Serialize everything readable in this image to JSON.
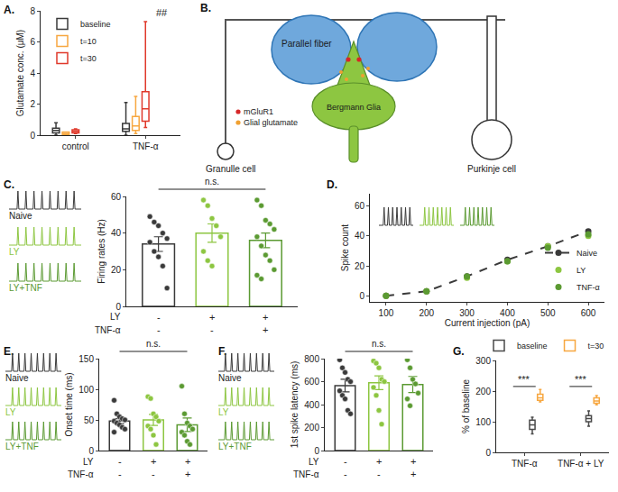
{
  "chart_data": [
    {
      "panel": "A.",
      "type": "box",
      "ylabel": "Glutamate conc. (μM)",
      "categories": [
        "control",
        "TNF-α"
      ],
      "ylim": [
        0,
        8
      ],
      "yticks": [
        0,
        2,
        4,
        6,
        8
      ],
      "legend": "top left",
      "series": [
        {
          "name": "baseline",
          "color": "#3a3a3a",
          "lower": [
            0,
            0
          ],
          "q1": [
            0.15,
            0.25
          ],
          "median": [
            0.3,
            0.4
          ],
          "q3": [
            0.45,
            0.75
          ],
          "upper": [
            0.8,
            2.1
          ]
        },
        {
          "name": "t=10",
          "color": "#f7a740",
          "lower": [
            0,
            0.1
          ],
          "q1": [
            0.05,
            0.3
          ],
          "median": [
            0.1,
            0.6
          ],
          "q3": [
            0.2,
            1.2
          ],
          "upper": [
            0.2,
            2.5
          ]
        },
        {
          "name": "t=30",
          "color": "#e0392b",
          "lower": [
            0.1,
            0.5
          ],
          "q1": [
            0.15,
            0.9
          ],
          "median": [
            0.25,
            1.7
          ],
          "q3": [
            0.35,
            2.8
          ],
          "upper": [
            0.4,
            7.3
          ]
        }
      ],
      "annotations": [
        {
          "text": "##",
          "category": "TNF-α",
          "series": "t=30",
          "y": 7.4
        }
      ]
    },
    {
      "panel": "C.",
      "type": "bar",
      "ylabel": "Firing rates (Hz)",
      "ylim": [
        0,
        60
      ],
      "yticks": [
        0,
        20,
        40,
        60
      ],
      "tick_labels": "y",
      "significance": "n.s.",
      "groups": [
        {
          "name": "Naive",
          "color": "#3a3a3a",
          "value": 34,
          "error": 4,
          "points": [
            49,
            46,
            44,
            40,
            37,
            35,
            30,
            27,
            22,
            10
          ]
        },
        {
          "name": "LY",
          "color": "#8dc641",
          "value": 40,
          "error": 5,
          "points": [
            58,
            55,
            48,
            44,
            38,
            30,
            25,
            22
          ]
        },
        {
          "name": "LY+TNF",
          "color": "#5b9a32",
          "value": 36,
          "error": 4,
          "points": [
            58,
            55,
            47,
            45,
            42,
            38,
            33,
            28,
            25,
            20,
            17,
            15
          ]
        }
      ],
      "condition_rows": [
        {
          "label": "LY",
          "values": [
            "-",
            "+",
            "+"
          ]
        },
        {
          "label": "TNF-α",
          "values": [
            "-",
            "-",
            "+"
          ]
        }
      ]
    },
    {
      "panel": "D.",
      "type": "line",
      "xlabel": "Current injection (pA)",
      "ylabel": "Spike count",
      "x": [
        100,
        200,
        300,
        400,
        500,
        600
      ],
      "xlim": [
        60,
        640
      ],
      "xticks": [
        100,
        200,
        300,
        400,
        500,
        600
      ],
      "ylim": [
        -4,
        68
      ],
      "yticks": [
        0,
        20,
        40,
        60
      ],
      "legend": "bottom right",
      "series": [
        {
          "name": "Naive",
          "color": "#3a3a3a",
          "marker": "circle",
          "line_style": "dash",
          "values": [
            0,
            3,
            13,
            24,
            33,
            43
          ]
        },
        {
          "name": "LY",
          "color": "#8dc641",
          "marker": "circle",
          "line_style": "none",
          "values": [
            0,
            3,
            12,
            23,
            33,
            40
          ]
        },
        {
          "name": "TNF-α",
          "color": "#5b9a32",
          "marker": "circle",
          "line_style": "none",
          "values": [
            0,
            3,
            13,
            23,
            32,
            41
          ]
        }
      ]
    },
    {
      "panel": "E.",
      "type": "bar",
      "ylabel": "Onset time (ms)",
      "ylim": [
        0,
        150
      ],
      "yticks": [
        0,
        50,
        100,
        150
      ],
      "tick_labels": "y",
      "significance": "n.s.",
      "groups": [
        {
          "name": "Naive",
          "color": "#3a3a3a",
          "value": 48,
          "error": 4,
          "points": [
            82,
            60,
            55,
            52,
            50,
            48,
            45,
            42,
            38,
            35,
            30
          ]
        },
        {
          "name": "LY",
          "color": "#8dc641",
          "value": 50,
          "error": 9,
          "points": [
            88,
            85,
            60,
            55,
            48,
            40,
            35,
            25,
            10
          ]
        },
        {
          "name": "LY+TNF",
          "color": "#5b9a32",
          "value": 42,
          "error": 11,
          "points": [
            105,
            60,
            45,
            40,
            35,
            30,
            25,
            15,
            10
          ]
        }
      ],
      "condition_rows": [
        {
          "label": "LY",
          "values": [
            "-",
            "+",
            "+"
          ]
        },
        {
          "label": "TNF-α",
          "values": [
            "-",
            "-",
            "+"
          ]
        }
      ]
    },
    {
      "panel": "F.",
      "type": "bar",
      "ylabel": "1st spike latency (ms)",
      "ylim": [
        0,
        800
      ],
      "yticks": [
        0,
        200,
        400,
        600,
        800
      ],
      "tick_labels": "y",
      "significance": "n.s.",
      "groups": [
        {
          "name": "Naive",
          "color": "#3a3a3a",
          "value": 565,
          "error": 55,
          "points": [
            790,
            720,
            680,
            620,
            600,
            520,
            480,
            450,
            350,
            320
          ]
        },
        {
          "name": "LY",
          "color": "#8dc641",
          "value": 590,
          "error": 60,
          "points": [
            780,
            760,
            720,
            620,
            600,
            550,
            480,
            350,
            230
          ]
        },
        {
          "name": "LY+TNF",
          "color": "#5b9a32",
          "value": 575,
          "error": 70,
          "points": [
            790,
            720,
            620,
            580,
            500,
            450,
            390
          ]
        }
      ],
      "condition_rows": [
        {
          "label": "LY",
          "values": [
            "-",
            "+",
            "+"
          ]
        },
        {
          "label": "TNF-α",
          "values": [
            "-",
            "-",
            "+"
          ]
        }
      ]
    },
    {
      "panel": "G.",
      "type": "box",
      "ylabel": "% of baseline",
      "categories": [
        "TNF-α",
        "TNF-α + LY"
      ],
      "ylim": [
        0,
        300
      ],
      "yticks": [
        0,
        100,
        200,
        300
      ],
      "legend": "top",
      "series": [
        {
          "name": "baseline",
          "color": "#4a4a4a",
          "lower": [
            60,
            85
          ],
          "q1": [
            75,
            100
          ],
          "median": [
            90,
            110
          ],
          "q3": [
            105,
            120
          ],
          "upper": [
            115,
            135
          ]
        },
        {
          "name": "t=30",
          "color": "#f7a740",
          "lower": [
            165,
            155
          ],
          "q1": [
            170,
            160
          ],
          "median": [
            178,
            168
          ],
          "q3": [
            190,
            178
          ],
          "upper": [
            205,
            185
          ]
        }
      ],
      "annotations": [
        {
          "text": "***",
          "category": "TNF-α",
          "y": 215,
          "bracket": true
        },
        {
          "text": "***",
          "category": "TNF-α + LY",
          "y": 215,
          "bracket": true
        }
      ]
    }
  ],
  "diagram": {
    "panel": "B.",
    "labels": {
      "parallel_fiber": "Parallel fiber",
      "bergmann_glia": "Bergmann Glia",
      "granule_cell": "Granulle cell",
      "purkinje_cell": "Purkinje cell"
    },
    "legend": [
      {
        "text": "mGluR1",
        "color": "#d62728"
      },
      {
        "text": "Glial glutamate",
        "color": "#f0a030"
      }
    ]
  }
}
